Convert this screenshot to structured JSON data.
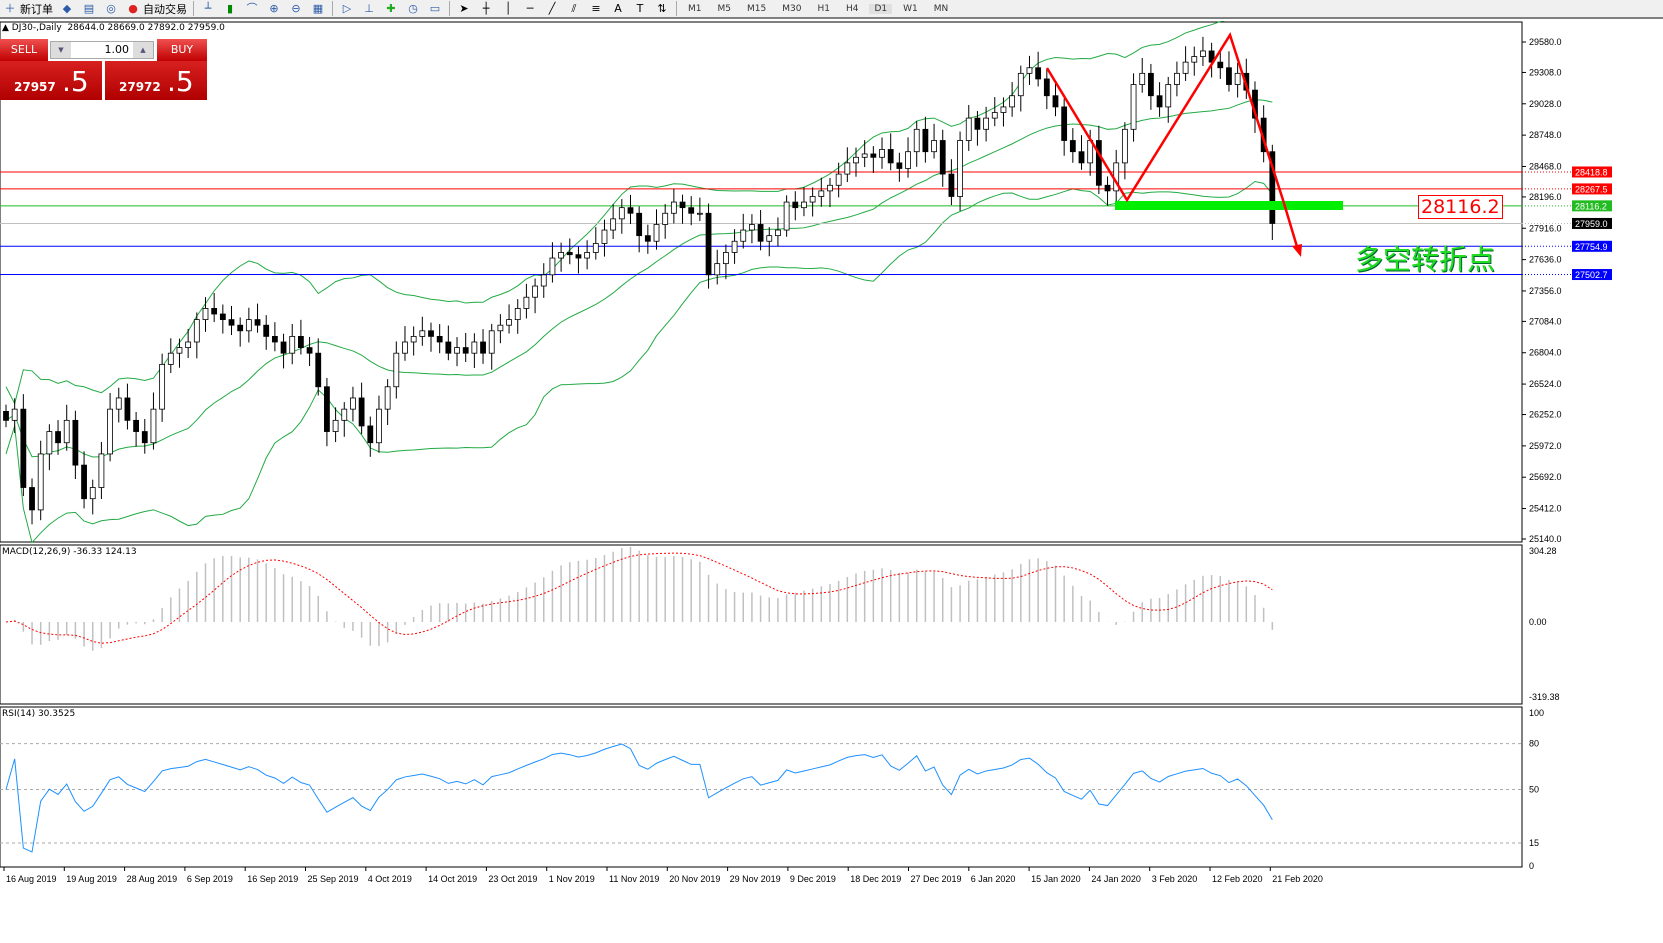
{
  "toolbar": {
    "new_order": "新订单",
    "auto_trading": "自动交易",
    "timeframes": [
      "M1",
      "M5",
      "M15",
      "M30",
      "H1",
      "H4",
      "D1",
      "W1",
      "MN"
    ],
    "icons": [
      "new-order-icon",
      "history-icon",
      "terminal-icon",
      "signal-icon",
      "auto-trading-icon",
      "bar-chart-icon",
      "candlestick-icon",
      "line-chart-icon",
      "zoom-in-icon",
      "zoom-out-icon",
      "tile-icon",
      "autoscroll-icon",
      "chart-shift-icon",
      "indicators-icon",
      "periods-icon",
      "templates-icon",
      "cursor-icon",
      "crosshair-icon",
      "vertical-line-icon",
      "horizontal-line-icon",
      "trendline-icon",
      "equidistant-channel-icon",
      "fibonacci-icon",
      "text-icon",
      "text-label-icon",
      "arrows-icon"
    ]
  },
  "header": {
    "symbol": "DJ30-,Daily",
    "ohlc": "28644.0 28669.0 27892.0 27959.0"
  },
  "trade_panel": {
    "sell": "SELL",
    "buy": "BUY",
    "lot": "1.00",
    "sell_price_main": "27957",
    "sell_price_big": ".5",
    "buy_price_main": "27972",
    "buy_price_big": ".5"
  },
  "colors": {
    "up": "#ffffff",
    "down": "#000000",
    "bands": "#22aa44",
    "macd_hist": "#c0c0c0",
    "macd_signal": "#ff0000",
    "rsi": "#1e90ff",
    "annotation": "#ff0000",
    "pivot": "#00ee00"
  },
  "price_axis": [
    "29580.0",
    "29308.0",
    "29028.0",
    "28748.0",
    "28468.0",
    "28196.0",
    "27916.0",
    "27636.0",
    "27356.0",
    "27084.0",
    "26804.0",
    "26524.0",
    "26252.0",
    "25972.0",
    "25692.0",
    "25412.0",
    "25140.0"
  ],
  "levels": [
    {
      "price": "28418.8",
      "color": "#ff0000"
    },
    {
      "price": "28267.5",
      "color": "#ff0000"
    },
    {
      "price": "28116.2",
      "color": "#22bb22"
    },
    {
      "price": "27959.0",
      "color": "#000000"
    },
    {
      "price": "27754.9",
      "color": "#0000ff"
    },
    {
      "price": "27502.7",
      "color": "#0000ff"
    }
  ],
  "annotations": {
    "level_label": "28116.2",
    "pivot_text": "多空转折点"
  },
  "closes": [
    26200,
    26300,
    25600,
    25400,
    25900,
    26100,
    26000,
    26200,
    25800,
    25500,
    25600,
    25900,
    26300,
    26400,
    26200,
    26100,
    26000,
    26300,
    26700,
    26800,
    26850,
    26900,
    27100,
    27200,
    27150,
    27100,
    27050,
    27000,
    27100,
    27050,
    26950,
    26900,
    26800,
    26950,
    26850,
    26800,
    26500,
    26100,
    26200,
    26300,
    26400,
    26150,
    26000,
    26300,
    26500,
    26800,
    26900,
    26950,
    27000,
    26950,
    26900,
    26800,
    26850,
    26800,
    26900,
    26800,
    27000,
    27050,
    27100,
    27200,
    27300,
    27400,
    27500,
    27650,
    27700,
    27680,
    27650,
    27700,
    27780,
    27900,
    28000,
    28100,
    28050,
    27850,
    27800,
    27950,
    28050,
    28150,
    28100,
    28050,
    28050,
    27500,
    27600,
    27700,
    27800,
    27900,
    27950,
    27800,
    27850,
    27900,
    28150,
    28100,
    28150,
    28200,
    28250,
    28300,
    28400,
    28500,
    28550,
    28580,
    28550,
    28620,
    28500,
    28450,
    28600,
    28800,
    28600,
    28700,
    28400,
    28200,
    28700,
    28900,
    28800,
    28900,
    28950,
    29000,
    29100,
    29300,
    29350,
    29250,
    29100,
    29000,
    28700,
    28600,
    28500,
    28700,
    28300,
    28250,
    28500,
    28800,
    29200,
    29300,
    29100,
    29000,
    29200,
    29300,
    29400,
    29450,
    29500,
    29400,
    29350,
    29200,
    29300,
    29150,
    28900,
    28600,
    27959
  ],
  "macd": {
    "label": "MACD(12,26,9) -36.33 124.13",
    "axis": [
      "304.28",
      "0.00",
      "-319.38"
    ]
  },
  "rsi": {
    "label": "RSI(14) 30.3525",
    "axis": [
      "100",
      "80",
      "50",
      "15",
      "0"
    ]
  },
  "dates": [
    "16 Aug 2019",
    "19 Aug 2019",
    "28 Aug 2019",
    "6 Sep 2019",
    "16 Sep 2019",
    "25 Sep 2019",
    "4 Oct 2019",
    "14 Oct 2019",
    "23 Oct 2019",
    "1 Nov 2019",
    "11 Nov 2019",
    "20 Nov 2019",
    "29 Nov 2019",
    "9 Dec 2019",
    "18 Dec 2019",
    "27 Dec 2019",
    "6 Jan 2020",
    "15 Jan 2020",
    "24 Jan 2020",
    "3 Feb 2020",
    "12 Feb 2020",
    "21 Feb 2020"
  ]
}
